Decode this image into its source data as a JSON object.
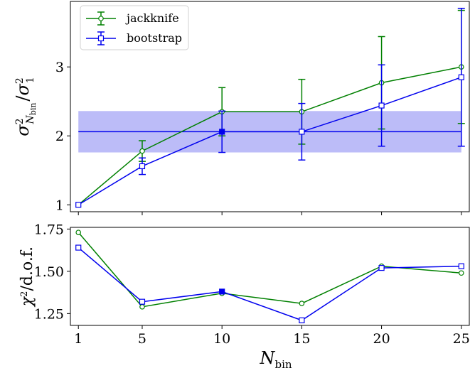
{
  "chart_data": [
    {
      "type": "line",
      "panel": "top",
      "x": [
        1,
        5,
        10,
        15,
        20,
        25
      ],
      "xlim": [
        0.5,
        25.5
      ],
      "ylim": [
        0.9,
        3.95
      ],
      "xticks": [
        1,
        5,
        10,
        15,
        20,
        25
      ],
      "yticks": [
        1,
        2,
        3
      ],
      "ytick_labels": [
        "1",
        "2",
        "3"
      ],
      "ylabel": "σ²_Nbin / σ²_1",
      "legend_position": "upper-left",
      "series": [
        {
          "name": "jackknife",
          "color": "#008000",
          "marker": "circle",
          "values": [
            1.0,
            1.78,
            2.35,
            2.35,
            2.77,
            3.0
          ],
          "errors": [
            0.0,
            0.15,
            0.35,
            0.47,
            0.67,
            0.82
          ]
        },
        {
          "name": "bootstrap",
          "color": "#0000ee",
          "marker": "square",
          "values": [
            1.0,
            1.56,
            2.06,
            2.06,
            2.44,
            2.85
          ],
          "errors": [
            0.0,
            0.12,
            0.3,
            0.41,
            0.59,
            1.0
          ]
        }
      ],
      "highlight": {
        "x": 10,
        "value": 2.06,
        "error": 0.3,
        "band_color": "#b8b8f8",
        "line_color": "#0000ee"
      }
    },
    {
      "type": "line",
      "panel": "bottom",
      "x": [
        1,
        5,
        10,
        15,
        20,
        25
      ],
      "xlim": [
        0.5,
        25.5
      ],
      "ylim": [
        1.18,
        1.76
      ],
      "xticks": [
        1,
        5,
        10,
        15,
        20,
        25
      ],
      "xtick_labels": [
        "1",
        "5",
        "10",
        "15",
        "20",
        "25"
      ],
      "yticks": [
        1.25,
        1.5,
        1.75
      ],
      "ytick_labels": [
        "1.25",
        "1.50",
        "1.75"
      ],
      "xlabel": "N_bin",
      "ylabel": "χ²/d.o.f.",
      "series": [
        {
          "color": "#008000",
          "marker": "circle",
          "values": [
            1.73,
            1.29,
            1.37,
            1.31,
            1.53,
            1.49
          ]
        },
        {
          "color": "#0000ee",
          "marker": "square",
          "values": [
            1.64,
            1.32,
            1.38,
            1.21,
            1.52,
            1.53
          ]
        }
      ],
      "highlight": {
        "x": 10,
        "value": 1.38
      }
    }
  ]
}
